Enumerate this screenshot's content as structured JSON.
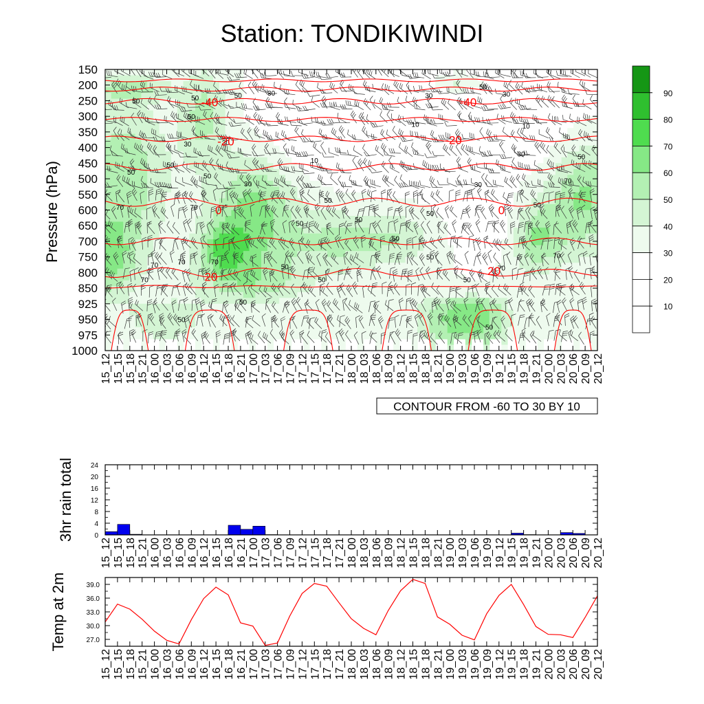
{
  "title": "Station: TONDIKIWINDI",
  "time_labels": [
    "15_12",
    "15_15",
    "15_18",
    "15_21",
    "16_00",
    "16_03",
    "16_06",
    "16_09",
    "16_12",
    "16_15",
    "16_18",
    "16_21",
    "17_00",
    "17_03",
    "17_06",
    "17_09",
    "17_12",
    "17_15",
    "17_18",
    "17_21",
    "18_00",
    "18_03",
    "18_06",
    "18_09",
    "18_12",
    "18_15",
    "18_18",
    "18_21",
    "19_00",
    "19_03",
    "19_06",
    "19_09",
    "19_12",
    "19_15",
    "19_18",
    "19_21",
    "20_00",
    "20_03",
    "20_06",
    "20_09",
    "20_12"
  ],
  "colors": {
    "temp_contour": "#ff0000",
    "rain_bar": "#0000ee",
    "temp_line": "#ff0000",
    "rh_levels": [
      "#ffffff",
      "#ffffff",
      "#ffffff",
      "#eefbee",
      "#d4f5d4",
      "#b3f0b3",
      "#86e886",
      "#4fdc4f",
      "#2fbf2f",
      "#159615"
    ]
  },
  "chart_data": [
    {
      "type": "heatmap",
      "name": "pressure-time cross-section",
      "ylabel": "Pressure (hPa)",
      "y_ticks": [
        150,
        200,
        250,
        300,
        350,
        400,
        450,
        500,
        550,
        600,
        650,
        700,
        750,
        800,
        850,
        925,
        950,
        975,
        1000
      ],
      "contour_note": "CONTOUR FROM -60 TO 30 BY 10",
      "colorbar_labels": [
        "10",
        "20",
        "30",
        "40",
        "50",
        "60",
        "70",
        "80",
        "90"
      ],
      "temp_contour_labels": [
        {
          "text": "-40",
          "t": 8.5,
          "p": 255
        },
        {
          "text": "-40",
          "t": 29.5,
          "p": 255
        },
        {
          "text": "-20",
          "t": 9.8,
          "p": 380
        },
        {
          "text": "-20",
          "t": 28.3,
          "p": 375
        },
        {
          "text": "0",
          "t": 9.2,
          "p": 600
        },
        {
          "text": "0",
          "t": 32.2,
          "p": 600
        },
        {
          "text": "20",
          "t": 8.6,
          "p": 813
        },
        {
          "text": "20",
          "t": 31.6,
          "p": 795
        }
      ],
      "rh_contour_labels": [
        {
          "text": "50",
          "t": 2.5,
          "p": 250
        },
        {
          "text": "50",
          "t": 7.3,
          "p": 240
        },
        {
          "text": "50",
          "t": 10.8,
          "p": 232
        },
        {
          "text": "30",
          "t": 13.5,
          "p": 225
        },
        {
          "text": "30",
          "t": 26.3,
          "p": 232
        },
        {
          "text": "50",
          "t": 30.7,
          "p": 205
        },
        {
          "text": "30",
          "t": 32.6,
          "p": 228
        },
        {
          "text": "50",
          "t": 7.0,
          "p": 300
        },
        {
          "text": "30",
          "t": 6.7,
          "p": 388
        },
        {
          "text": "30",
          "t": 9.8,
          "p": 383
        },
        {
          "text": "10",
          "t": 17.0,
          "p": 440
        },
        {
          "text": "10",
          "t": 25.2,
          "p": 325
        },
        {
          "text": "10",
          "t": 34.2,
          "p": 330
        },
        {
          "text": "30",
          "t": 33.8,
          "p": 420
        },
        {
          "text": "50",
          "t": 2.1,
          "p": 478
        },
        {
          "text": "50",
          "t": 5.3,
          "p": 455
        },
        {
          "text": "50",
          "t": 8.3,
          "p": 490
        },
        {
          "text": "30",
          "t": 11.6,
          "p": 515
        },
        {
          "text": "30",
          "t": 30.3,
          "p": 518
        },
        {
          "text": "50",
          "t": 38.7,
          "p": 428
        },
        {
          "text": "70",
          "t": 37.6,
          "p": 505
        },
        {
          "text": "70",
          "t": 1.2,
          "p": 590
        },
        {
          "text": "70",
          "t": 7.2,
          "p": 590
        },
        {
          "text": "50",
          "t": 18.1,
          "p": 568
        },
        {
          "text": "50",
          "t": 20.6,
          "p": 630
        },
        {
          "text": "50",
          "t": 15.8,
          "p": 642
        },
        {
          "text": "50",
          "t": 26.4,
          "p": 610
        },
        {
          "text": "50",
          "t": 35.1,
          "p": 582
        },
        {
          "text": "50",
          "t": 23.6,
          "p": 690
        },
        {
          "text": "50",
          "t": 26.4,
          "p": 750
        },
        {
          "text": "70",
          "t": 4.0,
          "p": 775
        },
        {
          "text": "70",
          "t": 6.2,
          "p": 765
        },
        {
          "text": "70",
          "t": 8.9,
          "p": 765
        },
        {
          "text": "50",
          "t": 14.6,
          "p": 780
        },
        {
          "text": "70",
          "t": 3.2,
          "p": 822
        },
        {
          "text": "50",
          "t": 17.6,
          "p": 822
        },
        {
          "text": "50",
          "t": 29.4,
          "p": 822
        },
        {
          "text": "70",
          "t": 32.2,
          "p": 785
        },
        {
          "text": "70",
          "t": 36.7,
          "p": 745
        },
        {
          "text": "50",
          "t": 11.2,
          "p": 915
        },
        {
          "text": "50",
          "t": 6.2,
          "p": 950
        },
        {
          "text": "50",
          "t": 31.2,
          "p": 962
        }
      ]
    },
    {
      "type": "bar",
      "name": "3hr rain",
      "ylabel": "3hr rain total",
      "ylim": [
        0,
        24
      ],
      "y_ticks": [
        0,
        4,
        8,
        12,
        16,
        20,
        24
      ],
      "bars": [
        {
          "x": 0.5,
          "value": 1.1
        },
        {
          "x": 1.5,
          "value": 3.6
        },
        {
          "x": 2.5,
          "value": 0.2
        },
        {
          "x": 10.5,
          "value": 3.3
        },
        {
          "x": 11.5,
          "value": 1.9
        },
        {
          "x": 12.5,
          "value": 3.0
        },
        {
          "x": 13.5,
          "value": 0.1
        },
        {
          "x": 33.5,
          "value": 0.6
        },
        {
          "x": 34.5,
          "value": 0.1
        },
        {
          "x": 37.5,
          "value": 0.8
        },
        {
          "x": 38.5,
          "value": 0.5
        }
      ]
    },
    {
      "type": "line",
      "name": "2m temperature",
      "ylabel": "Temp at 2m",
      "y_ticks": [
        "27.0",
        "30.0",
        "33.0",
        "36.0",
        "39.0"
      ],
      "ylim": [
        25.5,
        40.5
      ],
      "values": [
        30.8,
        34.7,
        33.6,
        31.4,
        28.8,
        26.8,
        26.0,
        31.3,
        35.9,
        38.4,
        36.7,
        30.6,
        29.9,
        25.7,
        26.2,
        32.1,
        37.0,
        39.2,
        38.6,
        35.0,
        31.5,
        29.4,
        28.0,
        33.3,
        37.6,
        40.1,
        39.2,
        31.9,
        30.3,
        27.9,
        26.9,
        32.6,
        36.6,
        39.0,
        34.6,
        29.8,
        28.1,
        28.0,
        27.4,
        31.8,
        36.5
      ]
    }
  ]
}
